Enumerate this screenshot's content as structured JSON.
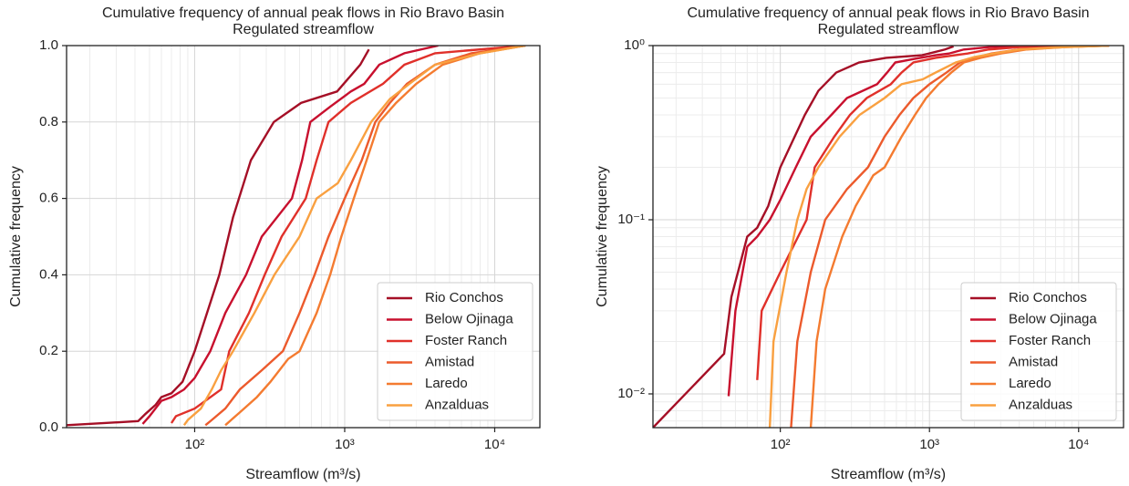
{
  "chart_data": [
    {
      "type": "line",
      "title": "Cumulative frequency of annual peak flows in Rio Bravo Basin",
      "subtitle": "Regulated streamflow",
      "x_label": "Streamflow (m³/s)",
      "y_label": "Cumulative frequency",
      "xscale": "log",
      "yscale": "linear",
      "xlim": [
        14,
        20000
      ],
      "ylim": [
        0,
        1
      ],
      "xticks": [
        {
          "value": 100,
          "label": "10²"
        },
        {
          "value": 1000,
          "label": "10³"
        },
        {
          "value": 10000,
          "label": "10⁴"
        }
      ],
      "yticks": [
        {
          "value": 0,
          "label": "0.0"
        },
        0.2,
        0.4,
        0.6,
        0.8,
        {
          "value": 1,
          "label": "1.0"
        }
      ],
      "grid": true,
      "minor_grid": true,
      "legend": "lower right",
      "series": [
        {
          "name": "Rio Conchos",
          "color": "#a50f26",
          "x": [
            14,
            42,
            47,
            55,
            60,
            70,
            83,
            100,
            146,
            180,
            237,
            337,
            512,
            890,
            1270,
            1450
          ],
          "values": [
            0.0064,
            0.017,
            0.036,
            0.06,
            0.08,
            0.09,
            0.12,
            0.2,
            0.4,
            0.55,
            0.7,
            0.8,
            0.85,
            0.88,
            0.95,
            0.99
          ]
        },
        {
          "name": "Below Ojinaga",
          "color": "#c8102e",
          "x": [
            45,
            50,
            60,
            70,
            85,
            100,
            127,
            160,
            220,
            280,
            445,
            520,
            590,
            800,
            1100,
            1350,
            1700,
            2500,
            4200
          ],
          "values": [
            0.0097,
            0.03,
            0.07,
            0.08,
            0.1,
            0.13,
            0.2,
            0.3,
            0.4,
            0.5,
            0.6,
            0.7,
            0.8,
            0.84,
            0.88,
            0.9,
            0.95,
            0.98,
            1.0
          ]
        },
        {
          "name": "Foster Ranch",
          "color": "#e0302a",
          "x": [
            70,
            75,
            100,
            150,
            170,
            230,
            293,
            380,
            550,
            650,
            780,
            1100,
            1800,
            2500,
            4000,
            16000
          ],
          "values": [
            0.012,
            0.03,
            0.05,
            0.1,
            0.2,
            0.3,
            0.4,
            0.5,
            0.6,
            0.7,
            0.8,
            0.85,
            0.9,
            0.95,
            0.98,
            1.0
          ]
        },
        {
          "name": "Amistad",
          "color": "#ec5a2c",
          "x": [
            118,
            130,
            160,
            200,
            280,
            387,
            500,
            630,
            780,
            1000,
            1300,
            1600,
            2000,
            2600,
            4000,
            7000,
            16000
          ],
          "values": [
            0.0064,
            0.02,
            0.05,
            0.1,
            0.15,
            0.2,
            0.3,
            0.4,
            0.5,
            0.6,
            0.7,
            0.8,
            0.85,
            0.9,
            0.95,
            0.98,
            1.0
          ]
        },
        {
          "name": "Laredo",
          "color": "#f47b30",
          "x": [
            160,
            175,
            200,
            260,
            320,
            420,
            500,
            650,
            800,
            950,
            1150,
            1400,
            1700,
            2200,
            3000,
            4500,
            8000,
            16000
          ],
          "values": [
            0.0064,
            0.02,
            0.04,
            0.08,
            0.12,
            0.18,
            0.2,
            0.3,
            0.4,
            0.5,
            0.6,
            0.7,
            0.8,
            0.85,
            0.9,
            0.95,
            0.98,
            1.0
          ]
        },
        {
          "name": "Anzalduas",
          "color": "#f9a040",
          "x": [
            85,
            90,
            110,
            130,
            150,
            180,
            250,
            340,
            500,
            650,
            900,
            1100,
            1500,
            2000,
            2700,
            4000,
            8000,
            16000
          ],
          "values": [
            0.0064,
            0.02,
            0.05,
            0.1,
            0.15,
            0.2,
            0.3,
            0.4,
            0.5,
            0.6,
            0.64,
            0.7,
            0.8,
            0.86,
            0.9,
            0.95,
            0.98,
            1.0
          ]
        }
      ]
    },
    {
      "type": "line",
      "title": "Cumulative frequency of annual peak flows in Rio Bravo Basin",
      "subtitle": "Regulated streamflow",
      "x_label": "Streamflow (m³/s)",
      "y_label": "Cumulative frequency",
      "xscale": "log",
      "yscale": "log",
      "xlim": [
        14,
        20000
      ],
      "ylim": [
        0.0064,
        1
      ],
      "xticks": [
        {
          "value": 100,
          "label": "10²"
        },
        {
          "value": 1000,
          "label": "10³"
        },
        {
          "value": 10000,
          "label": "10⁴"
        }
      ],
      "yticks": [
        {
          "value": 0.01,
          "label": "10⁻²"
        },
        {
          "value": 0.1,
          "label": "10⁻¹"
        },
        {
          "value": 1,
          "label": "10⁰"
        }
      ],
      "grid": true,
      "minor_grid": true,
      "legend": "lower right",
      "series": [
        {
          "name": "Rio Conchos",
          "color": "#a50f26",
          "x": [
            14,
            42,
            47,
            55,
            60,
            70,
            83,
            100,
            146,
            180,
            237,
            337,
            512,
            890,
            1270,
            1450
          ],
          "values": [
            0.0064,
            0.017,
            0.036,
            0.06,
            0.08,
            0.09,
            0.12,
            0.2,
            0.4,
            0.55,
            0.7,
            0.8,
            0.85,
            0.88,
            0.95,
            0.99
          ]
        },
        {
          "name": "Below Ojinaga",
          "color": "#c8102e",
          "x": [
            45,
            50,
            60,
            70,
            85,
            100,
            127,
            160,
            220,
            280,
            445,
            520,
            590,
            800,
            1100,
            1350,
            1700,
            2500,
            4200
          ],
          "values": [
            0.0097,
            0.03,
            0.07,
            0.08,
            0.1,
            0.13,
            0.2,
            0.3,
            0.4,
            0.5,
            0.6,
            0.7,
            0.8,
            0.84,
            0.88,
            0.9,
            0.95,
            0.98,
            1.0
          ]
        },
        {
          "name": "Foster Ranch",
          "color": "#e0302a",
          "x": [
            70,
            75,
            100,
            150,
            170,
            230,
            293,
            380,
            550,
            650,
            780,
            1100,
            1800,
            2500,
            4000,
            16000
          ],
          "values": [
            0.012,
            0.03,
            0.05,
            0.1,
            0.2,
            0.3,
            0.4,
            0.5,
            0.6,
            0.7,
            0.8,
            0.85,
            0.9,
            0.95,
            0.98,
            1.0
          ]
        },
        {
          "name": "Amistad",
          "color": "#ec5a2c",
          "x": [
            118,
            130,
            160,
            200,
            280,
            387,
            500,
            630,
            780,
            1000,
            1300,
            1600,
            2000,
            2600,
            4000,
            7000,
            16000
          ],
          "values": [
            0.0064,
            0.02,
            0.05,
            0.1,
            0.15,
            0.2,
            0.3,
            0.4,
            0.5,
            0.6,
            0.7,
            0.8,
            0.85,
            0.9,
            0.95,
            0.98,
            1.0
          ]
        },
        {
          "name": "Laredo",
          "color": "#f47b30",
          "x": [
            160,
            175,
            200,
            260,
            320,
            420,
            500,
            650,
            800,
            950,
            1150,
            1400,
            1700,
            2200,
            3000,
            4500,
            8000,
            16000
          ],
          "values": [
            0.0064,
            0.02,
            0.04,
            0.08,
            0.12,
            0.18,
            0.2,
            0.3,
            0.4,
            0.5,
            0.6,
            0.7,
            0.8,
            0.85,
            0.9,
            0.95,
            0.98,
            1.0
          ]
        },
        {
          "name": "Anzalduas",
          "color": "#f9a040",
          "x": [
            85,
            90,
            110,
            130,
            150,
            180,
            250,
            340,
            500,
            650,
            900,
            1100,
            1500,
            2000,
            2700,
            4000,
            8000,
            16000
          ],
          "values": [
            0.0064,
            0.02,
            0.05,
            0.1,
            0.15,
            0.2,
            0.3,
            0.4,
            0.5,
            0.6,
            0.64,
            0.7,
            0.8,
            0.86,
            0.9,
            0.95,
            0.98,
            1.0
          ]
        }
      ]
    }
  ]
}
